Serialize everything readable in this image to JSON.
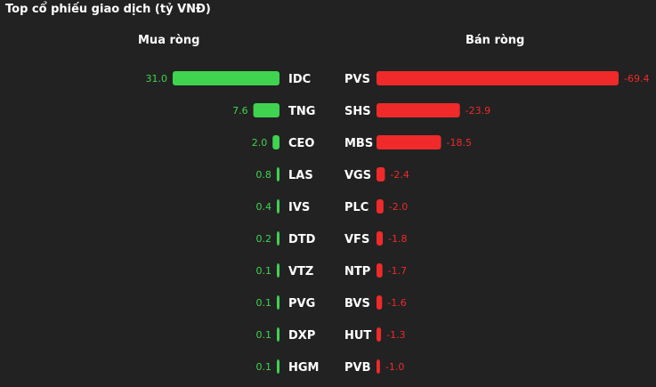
{
  "title": "Top cổ phiếu giao dịch (tỷ VNĐ)",
  "colors": {
    "background": "#222222",
    "buy": "#3fd350",
    "sell": "#f02a2a",
    "ticker": "#ffffff"
  },
  "chart_data": [
    {
      "type": "bar",
      "title": "Mua ròng",
      "categories": [
        "IDC",
        "TNG",
        "CEO",
        "LAS",
        "IVS",
        "DTD",
        "VTZ",
        "PVG",
        "DXP",
        "HGM"
      ],
      "values": [
        31.0,
        7.6,
        2.0,
        0.8,
        0.4,
        0.2,
        0.1,
        0.1,
        0.1,
        0.1
      ],
      "value_labels": [
        "31.0",
        "7.6",
        "2.0",
        "0.8",
        "0.4",
        "0.2",
        "0.1",
        "0.1",
        "0.1",
        "0.1"
      ],
      "color": "#3fd350",
      "orientation": "horizontal"
    },
    {
      "type": "bar",
      "title": "Bán ròng",
      "categories": [
        "PVS",
        "SHS",
        "MBS",
        "VGS",
        "PLC",
        "VFS",
        "NTP",
        "BVS",
        "HUT",
        "PVB"
      ],
      "values": [
        -69.4,
        -23.9,
        -18.5,
        -2.4,
        -2.0,
        -1.8,
        -1.7,
        -1.6,
        -1.3,
        -1.0
      ],
      "value_labels": [
        "-69.4",
        "-23.9",
        "-18.5",
        "-2.4",
        "-2.0",
        "-1.8",
        "-1.7",
        "-1.6",
        "-1.3",
        "-1.0"
      ],
      "color": "#f02a2a",
      "orientation": "horizontal"
    }
  ]
}
